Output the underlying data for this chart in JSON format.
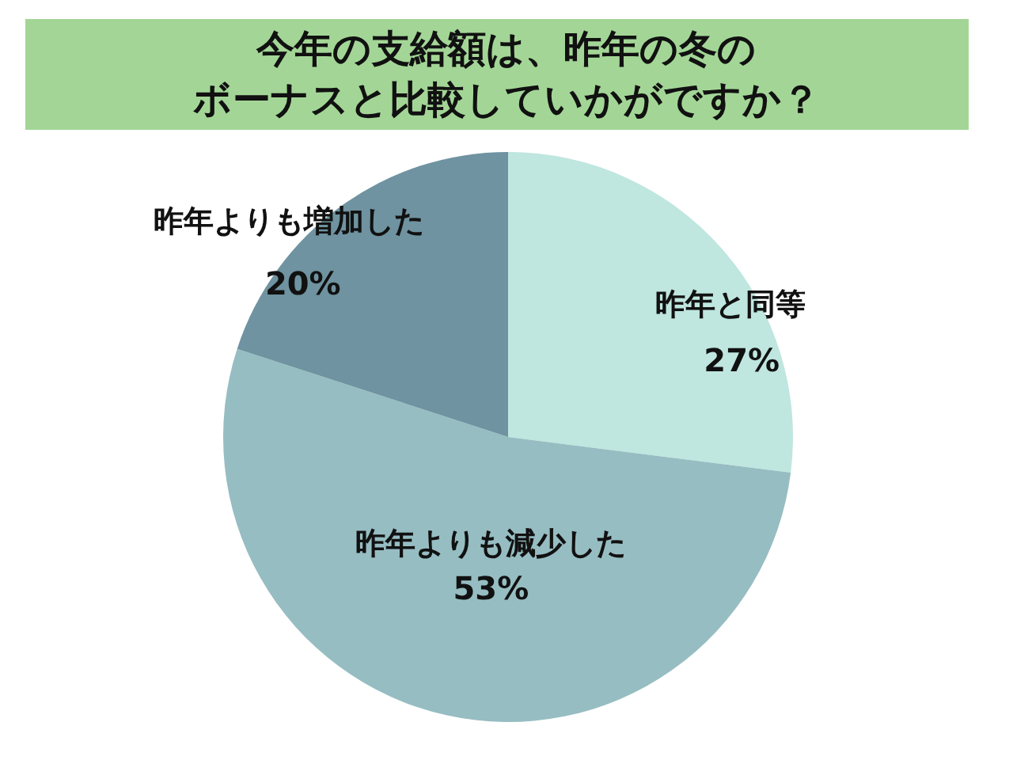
{
  "chart_data": {
    "type": "pie",
    "title": "今年の支給額は、昨年の冬のボーナスと比較していかがですか？",
    "categories": [
      "昨年と同等",
      "昨年よりも減少した",
      "昨年よりも増加した"
    ],
    "values": [
      27,
      53,
      20
    ],
    "colors": [
      "#bfe6df",
      "#96bdc2",
      "#6f93a0"
    ],
    "value_labels": [
      "27%",
      "53%",
      "20%"
    ]
  }
}
